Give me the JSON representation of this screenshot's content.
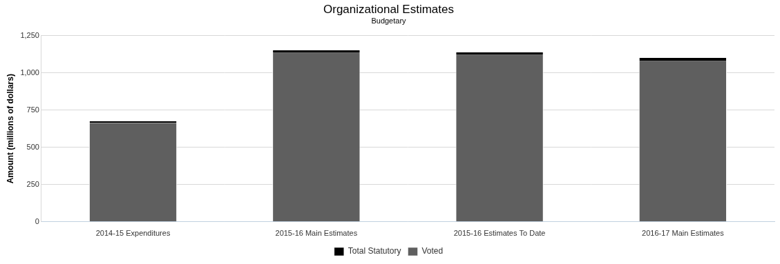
{
  "chart_data": {
    "type": "bar",
    "title": "Organizational Estimates",
    "subtitle": "Budgetary",
    "y_label": "Amount (millions of dollars)",
    "categories": [
      "2014-15 Expenditures",
      "2015-16 Main Estimates",
      "2015-16 Estimates To Date",
      "2016-17 Main Estimates"
    ],
    "series": [
      {
        "name": "Total Statutory",
        "color": "#000000",
        "values": [
          12,
          17,
          17,
          22
        ]
      },
      {
        "name": "Voted",
        "color": "#5f5f5f",
        "values": [
          664,
          1134,
          1120,
          1078
        ]
      }
    ],
    "stacked": true,
    "ylim": [
      0,
      1250
    ],
    "yticks": [
      0,
      250,
      500,
      750,
      {
        "value": 1000,
        "label": "1,000"
      },
      {
        "value": 1250,
        "label": "1,250"
      }
    ],
    "grid": true,
    "legend": "bottom"
  }
}
